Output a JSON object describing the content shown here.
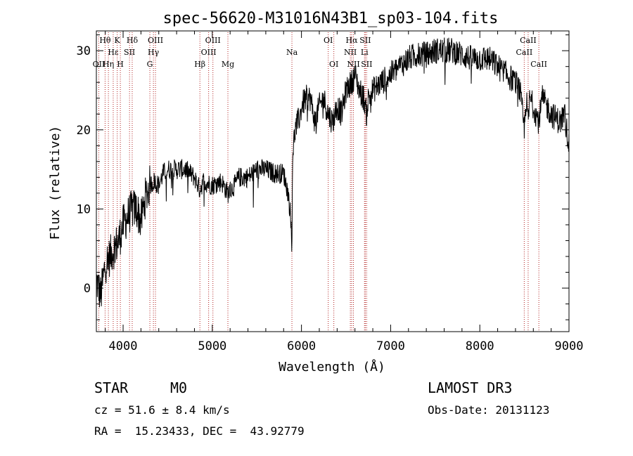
{
  "chart_data": {
    "type": "line",
    "title": "spec-56620-M31016N43B1_sp03-104.fits",
    "xlabel": "Wavelength (Å)",
    "ylabel": "Flux (relative)",
    "xlim": [
      3700,
      9000
    ],
    "ylim": [
      -5.5,
      32.5
    ],
    "x_ticks": [
      4000,
      5000,
      6000,
      7000,
      8000,
      9000
    ],
    "y_ticks": [
      0,
      10,
      20,
      30
    ],
    "grid": false,
    "spectrum_anchors": {
      "x": [
        3700,
        3750,
        3800,
        3850,
        3900,
        3950,
        4000,
        4050,
        4100,
        4150,
        4200,
        4250,
        4300,
        4350,
        4400,
        4450,
        4500,
        4600,
        4700,
        4800,
        4860,
        4900,
        5000,
        5100,
        5175,
        5250,
        5300,
        5400,
        5500,
        5600,
        5700,
        5800,
        5850,
        5880,
        5893,
        5900,
        5930,
        5960,
        5990,
        6000,
        6050,
        6100,
        6150,
        6200,
        6250,
        6300,
        6350,
        6400,
        6450,
        6500,
        6563,
        6600,
        6650,
        6700,
        6730,
        6750,
        6800,
        6900,
        7000,
        7100,
        7200,
        7300,
        7400,
        7500,
        7600,
        7700,
        7800,
        7900,
        8000,
        8100,
        8200,
        8300,
        8400,
        8450,
        8498,
        8520,
        8542,
        8560,
        8600,
        8662,
        8700,
        8800,
        8900,
        8950,
        9000
      ],
      "y": [
        1,
        -1,
        3,
        4,
        5,
        6,
        8,
        9,
        10,
        10,
        8.5,
        11.5,
        13,
        13.5,
        13,
        14.5,
        15,
        15,
        15,
        14,
        12.5,
        13.5,
        13,
        13.5,
        12,
        13,
        14,
        14,
        15,
        15,
        14.5,
        14.5,
        12,
        9,
        4,
        17,
        20,
        21,
        22,
        23,
        24,
        24,
        21,
        23,
        24,
        22,
        21,
        23,
        22,
        25,
        26,
        27,
        25,
        24,
        22,
        24,
        25,
        26,
        27,
        28,
        29,
        29.5,
        29.5,
        30,
        30,
        30,
        29.5,
        29,
        29,
        29,
        28,
        27,
        26,
        25,
        20,
        24,
        21,
        24,
        23,
        21,
        24,
        22,
        21,
        22,
        18
      ]
    },
    "spectral_lines": [
      {
        "name": "OII",
        "wavelength": 3727,
        "row": 3
      },
      {
        "name": "Hθ",
        "wavelength": 3798,
        "row": 1
      },
      {
        "name": "Hη",
        "wavelength": 3835,
        "row": 3
      },
      {
        "name": "Hε",
        "wavelength": 3889,
        "row": 2
      },
      {
        "name": "K",
        "wavelength": 3934,
        "row": 1
      },
      {
        "name": "H",
        "wavelength": 3969,
        "row": 3
      },
      {
        "name": "SII",
        "wavelength": 4072,
        "row": 2
      },
      {
        "name": "Hδ",
        "wavelength": 4102,
        "row": 1
      },
      {
        "name": "G",
        "wavelength": 4300,
        "row": 3
      },
      {
        "name": "Hγ",
        "wavelength": 4340,
        "row": 2
      },
      {
        "name": "OIII",
        "wavelength": 4363,
        "row": 1
      },
      {
        "name": "Hβ",
        "wavelength": 4861,
        "row": 3
      },
      {
        "name": "OIII",
        "wavelength": 4959,
        "row": 2
      },
      {
        "name": "OIII",
        "wavelength": 5007,
        "row": 1
      },
      {
        "name": "Mg",
        "wavelength": 5175,
        "row": 3
      },
      {
        "name": "Na",
        "wavelength": 5893,
        "row": 2
      },
      {
        "name": "OI",
        "wavelength": 6300,
        "row": 1
      },
      {
        "name": "OI",
        "wavelength": 6363,
        "row": 3
      },
      {
        "name": "NII",
        "wavelength": 6548,
        "row": 2
      },
      {
        "name": "Hα",
        "wavelength": 6563,
        "row": 1
      },
      {
        "name": "NII",
        "wavelength": 6583,
        "row": 3
      },
      {
        "name": "Li",
        "wavelength": 6707,
        "row": 2
      },
      {
        "name": "SII",
        "wavelength": 6716,
        "row": 1
      },
      {
        "name": "SII",
        "wavelength": 6731,
        "row": 3
      },
      {
        "name": "CaII",
        "wavelength": 8498,
        "row": 2
      },
      {
        "name": "CaII",
        "wavelength": 8542,
        "row": 1
      },
      {
        "name": "CaII",
        "wavelength": 8662,
        "row": 3
      }
    ],
    "colors": {
      "spectrum": "#000000",
      "line_markers": "#b22222",
      "axes": "#000000"
    }
  },
  "info": {
    "class": "STAR",
    "subclass": "M0",
    "survey": "LAMOST DR3",
    "redshift": "cz = 51.6 ± 8.4 km/s",
    "obs_date": "Obs-Date: 20131123",
    "coords": "RA =  15.23433, DEC =  43.92779"
  }
}
